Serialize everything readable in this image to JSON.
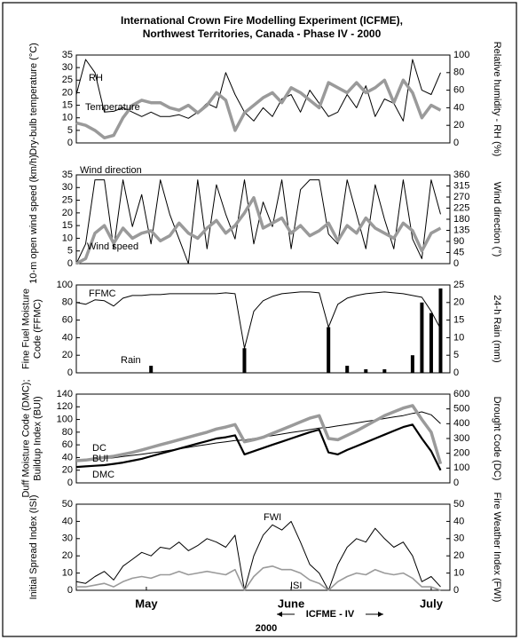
{
  "title": [
    "International Crown Fire Modelling Experiment (ICFME),",
    "Northwest Territories, Canada - Phase IV - 2000"
  ],
  "annotations": {
    "period": "ICFME - IV",
    "year": "2000"
  },
  "chart_data": [
    {
      "type": "line",
      "ylabel": [
        "Dry-bulb temperature (°C)"
      ],
      "y2label": [
        "Relative humidity - RH (%)"
      ],
      "xlim": [
        0,
        80
      ],
      "ylim": [
        0,
        35
      ],
      "yticks": [
        0,
        5,
        10,
        15,
        20,
        25,
        30,
        35
      ],
      "y2lim": [
        0,
        100
      ],
      "y2ticks": [
        0,
        20,
        40,
        60,
        80,
        100
      ],
      "x": [
        0,
        2,
        4,
        6,
        8,
        10,
        12,
        14,
        16,
        18,
        20,
        22,
        24,
        26,
        28,
        30,
        32,
        34,
        36,
        38,
        40,
        42,
        44,
        46,
        48,
        50,
        52,
        54,
        56,
        58,
        60,
        62,
        64,
        66,
        68,
        70,
        72,
        74,
        76,
        78
      ],
      "series": [
        {
          "name": "RH",
          "color": "#000000",
          "width": 1,
          "axis": "y2",
          "values": [
            55,
            95,
            80,
            35,
            36,
            40,
            35,
            30,
            35,
            30,
            30,
            32,
            28,
            35,
            45,
            40,
            80,
            55,
            35,
            25,
            40,
            30,
            50,
            55,
            35,
            60,
            45,
            30,
            35,
            55,
            40,
            65,
            30,
            50,
            45,
            25,
            95,
            60,
            55,
            80
          ]
        },
        {
          "name": "Temperature",
          "color": "#9a9a9a",
          "width": 3.5,
          "axis": "y",
          "values": [
            8,
            7,
            5,
            2,
            3,
            10,
            15,
            17,
            16,
            16,
            14,
            13,
            15,
            12,
            15,
            20,
            17,
            5,
            12,
            15,
            18,
            20,
            16,
            22,
            20,
            17,
            14,
            24,
            22,
            20,
            24,
            20,
            22,
            25,
            16,
            25,
            20,
            10,
            15,
            13
          ]
        }
      ]
    },
    {
      "type": "line",
      "ylabel": [
        "10-m open wind speed (km/h)"
      ],
      "y2label": [
        "Wind direction (°)"
      ],
      "xlim": [
        0,
        80
      ],
      "ylim": [
        0,
        35
      ],
      "yticks": [
        0,
        5,
        10,
        15,
        20,
        25,
        30,
        35
      ],
      "y2lim": [
        0,
        360
      ],
      "y2ticks": [
        0,
        45,
        90,
        135,
        180,
        225,
        270,
        315,
        360
      ],
      "x": [
        0,
        2,
        4,
        6,
        8,
        10,
        12,
        14,
        16,
        18,
        20,
        22,
        24,
        26,
        28,
        30,
        32,
        34,
        36,
        38,
        40,
        42,
        44,
        46,
        48,
        50,
        52,
        54,
        56,
        58,
        60,
        62,
        64,
        66,
        68,
        70,
        72,
        74,
        76,
        78
      ],
      "series": [
        {
          "name": "Wind direction",
          "color": "#000000",
          "width": 1,
          "axis": "y2",
          "values": [
            0,
            80,
            340,
            340,
            60,
            340,
            150,
            280,
            80,
            340,
            200,
            100,
            0,
            340,
            60,
            320,
            200,
            100,
            340,
            80,
            250,
            150,
            340,
            60,
            300,
            340,
            340,
            120,
            80,
            340,
            200,
            60,
            320,
            180,
            60,
            340,
            100,
            20,
            340,
            200
          ]
        },
        {
          "name": "Wind speed",
          "color": "#9a9a9a",
          "width": 3.5,
          "axis": "y",
          "values": [
            0,
            2,
            12,
            15,
            8,
            14,
            10,
            12,
            13,
            9,
            11,
            16,
            12,
            10,
            14,
            17,
            12,
            15,
            20,
            26,
            14,
            16,
            18,
            12,
            15,
            11,
            13,
            16,
            9,
            15,
            12,
            18,
            14,
            12,
            10,
            16,
            13,
            5,
            12,
            14
          ]
        }
      ]
    },
    {
      "type": "line",
      "ylabel": [
        "Fine Fuel Moisture",
        "Code (FFMC)"
      ],
      "y2label": [
        "24-h Rain (mm)"
      ],
      "xlim": [
        0,
        80
      ],
      "ylim": [
        0,
        100
      ],
      "yticks": [
        0,
        20,
        40,
        60,
        80,
        100
      ],
      "y2lim": [
        0,
        25
      ],
      "y2ticks": [
        0,
        5,
        10,
        15,
        20,
        25
      ],
      "x": [
        0,
        2,
        4,
        6,
        8,
        10,
        12,
        14,
        16,
        18,
        20,
        22,
        24,
        26,
        28,
        30,
        32,
        34,
        36,
        38,
        40,
        42,
        44,
        46,
        48,
        50,
        52,
        54,
        56,
        58,
        60,
        62,
        64,
        66,
        68,
        70,
        72,
        74,
        76,
        78
      ],
      "series": [
        {
          "name": "FFMC",
          "color": "#000000",
          "width": 1,
          "axis": "y",
          "values": [
            80,
            78,
            83,
            82,
            76,
            85,
            88,
            88,
            89,
            89,
            90,
            90,
            90,
            90,
            90,
            90,
            91,
            90,
            28,
            70,
            82,
            87,
            90,
            91,
            92,
            92,
            91,
            52,
            78,
            85,
            88,
            90,
            91,
            92,
            91,
            90,
            88,
            86,
            70,
            50
          ]
        },
        {
          "name": "Rain",
          "type": "bar",
          "color": "#000000",
          "axis": "y2",
          "values": [
            0,
            0,
            0,
            0,
            0,
            0,
            0,
            0,
            2,
            0,
            0,
            0,
            0,
            0,
            0,
            0,
            0,
            0,
            7,
            0,
            0,
            0,
            0,
            0,
            0,
            0,
            0,
            13,
            0,
            2,
            0,
            1,
            0,
            1,
            0,
            0,
            5,
            20,
            17,
            24
          ]
        }
      ]
    },
    {
      "type": "line",
      "ylabel": [
        "Duff Moisture Code (DMC);",
        "Buildup Index (BUI)"
      ],
      "y2label": [
        "Drought Code (DC)"
      ],
      "xlim": [
        0,
        80
      ],
      "ylim": [
        0,
        140
      ],
      "yticks": [
        0,
        20,
        40,
        60,
        80,
        100,
        120,
        140
      ],
      "y2lim": [
        0,
        600
      ],
      "y2ticks": [
        0,
        100,
        200,
        300,
        400,
        500,
        600
      ],
      "x": [
        0,
        2,
        4,
        6,
        8,
        10,
        12,
        14,
        16,
        18,
        20,
        22,
        24,
        26,
        28,
        30,
        32,
        34,
        36,
        38,
        40,
        42,
        44,
        46,
        48,
        50,
        52,
        54,
        56,
        58,
        60,
        62,
        64,
        66,
        68,
        70,
        72,
        74,
        76,
        78
      ],
      "series": [
        {
          "name": "DC",
          "color": "#000000",
          "width": 1,
          "axis": "y2",
          "values": [
            150,
            155,
            160,
            165,
            170,
            178,
            186,
            194,
            202,
            210,
            220,
            230,
            240,
            250,
            260,
            270,
            278,
            286,
            290,
            300,
            310,
            320,
            330,
            340,
            350,
            360,
            370,
            375,
            385,
            395,
            405,
            415,
            425,
            435,
            445,
            455,
            470,
            480,
            460,
            400
          ]
        },
        {
          "name": "BUI",
          "color": "#9a9a9a",
          "width": 3.5,
          "axis": "y",
          "values": [
            35,
            36,
            38,
            40,
            42,
            45,
            48,
            52,
            56,
            60,
            64,
            68,
            72,
            76,
            80,
            85,
            88,
            92,
            65,
            68,
            72,
            78,
            84,
            90,
            96,
            102,
            106,
            70,
            68,
            75,
            82,
            90,
            98,
            106,
            112,
            118,
            122,
            100,
            80,
            30
          ]
        },
        {
          "name": "DMC",
          "color": "#000000",
          "width": 2.2,
          "axis": "y",
          "values": [
            25,
            26,
            27,
            28,
            30,
            32,
            35,
            38,
            42,
            46,
            50,
            54,
            58,
            62,
            66,
            70,
            72,
            75,
            45,
            50,
            55,
            60,
            65,
            70,
            75,
            80,
            84,
            48,
            45,
            52,
            58,
            64,
            70,
            76,
            82,
            88,
            92,
            70,
            50,
            20
          ]
        }
      ]
    },
    {
      "type": "line",
      "ylabel": [
        "Initial Spread Index (ISI)"
      ],
      "y2label": [
        "Fire Weather Index (FWI)"
      ],
      "xlim": [
        0,
        80
      ],
      "ylim": [
        0,
        50
      ],
      "yticks": [
        0,
        10,
        20,
        30,
        40,
        50
      ],
      "y2lim": [
        0,
        50
      ],
      "y2ticks": [
        0,
        10,
        20,
        30,
        40,
        50
      ],
      "xticks": [
        {
          "value": 15,
          "label": "May"
        },
        {
          "value": 46,
          "label": "June"
        },
        {
          "value": 76,
          "label": "July"
        }
      ],
      "x": [
        0,
        2,
        4,
        6,
        8,
        10,
        12,
        14,
        16,
        18,
        20,
        22,
        24,
        26,
        28,
        30,
        32,
        34,
        36,
        38,
        40,
        42,
        44,
        46,
        48,
        50,
        52,
        54,
        56,
        58,
        60,
        62,
        64,
        66,
        68,
        70,
        72,
        74,
        76,
        78
      ],
      "series": [
        {
          "name": "FWI",
          "color": "#000000",
          "width": 1,
          "axis": "y2",
          "values": [
            5,
            4,
            8,
            11,
            6,
            14,
            18,
            22,
            20,
            25,
            24,
            28,
            23,
            26,
            30,
            28,
            25,
            32,
            0,
            20,
            32,
            38,
            35,
            40,
            28,
            15,
            10,
            0,
            15,
            25,
            30,
            28,
            36,
            30,
            25,
            28,
            20,
            5,
            8,
            2
          ]
        },
        {
          "name": "ISI",
          "color": "#9a9a9a",
          "width": 1.6,
          "axis": "y",
          "values": [
            2,
            2,
            3,
            4,
            2,
            5,
            7,
            8,
            7,
            9,
            9,
            11,
            9,
            10,
            11,
            10,
            9,
            12,
            0,
            8,
            13,
            14,
            12,
            12,
            10,
            6,
            4,
            0,
            5,
            8,
            10,
            9,
            12,
            10,
            9,
            10,
            7,
            2,
            2,
            0
          ]
        }
      ]
    }
  ]
}
